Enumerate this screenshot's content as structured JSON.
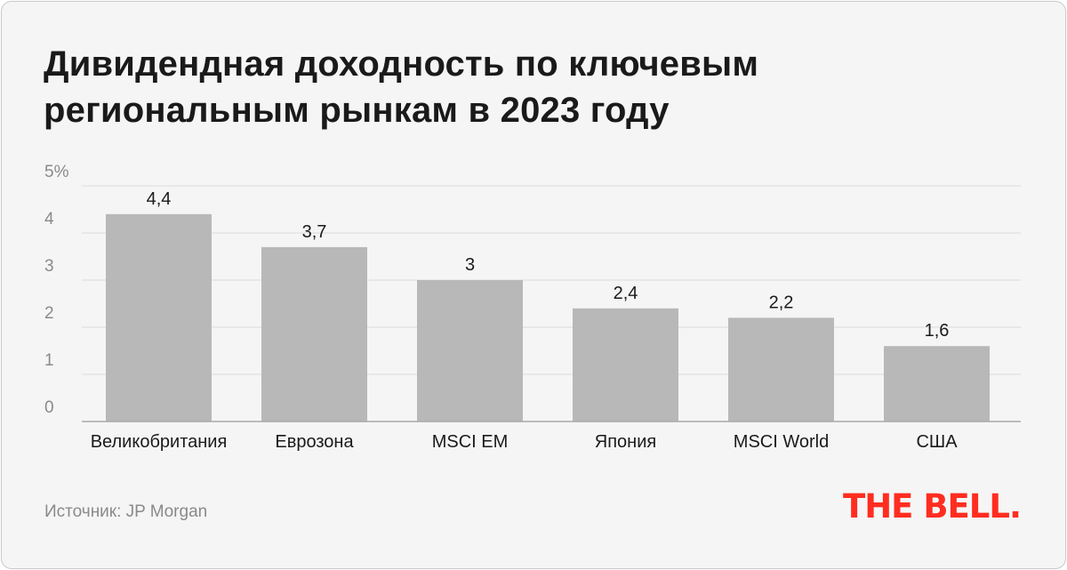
{
  "title_lines": [
    "Дивидендная доходность по ключевым",
    "региональным рынкам в 2023 году"
  ],
  "source": "Источник: JP Morgan",
  "logo": "THE BELL.",
  "colors": {
    "bar": "#b8b8b8",
    "grid": "#dcdcdc",
    "axis": "#aaaaaa",
    "logo": "#ff2d20",
    "background": "#f5f5f5"
  },
  "chart_data": {
    "type": "bar",
    "categories": [
      "Великобритания",
      "Еврозона",
      "MSCI EM",
      "Япония",
      "MSCI World",
      "США"
    ],
    "values": [
      4.4,
      3.7,
      3,
      2.4,
      2.2,
      1.6
    ],
    "value_labels": [
      "4,4",
      "3,7",
      "3",
      "2,4",
      "2,2",
      "1,6"
    ],
    "yticks": [
      0,
      1,
      2,
      3,
      4,
      5
    ],
    "ytick_labels": [
      "0",
      "1",
      "2",
      "3",
      "4",
      "5%"
    ],
    "ylim": [
      0,
      5
    ],
    "grid": true,
    "title": "Дивидендная доходность по ключевым региональным рынкам в 2023 году",
    "xlabel": "",
    "ylabel": ""
  }
}
